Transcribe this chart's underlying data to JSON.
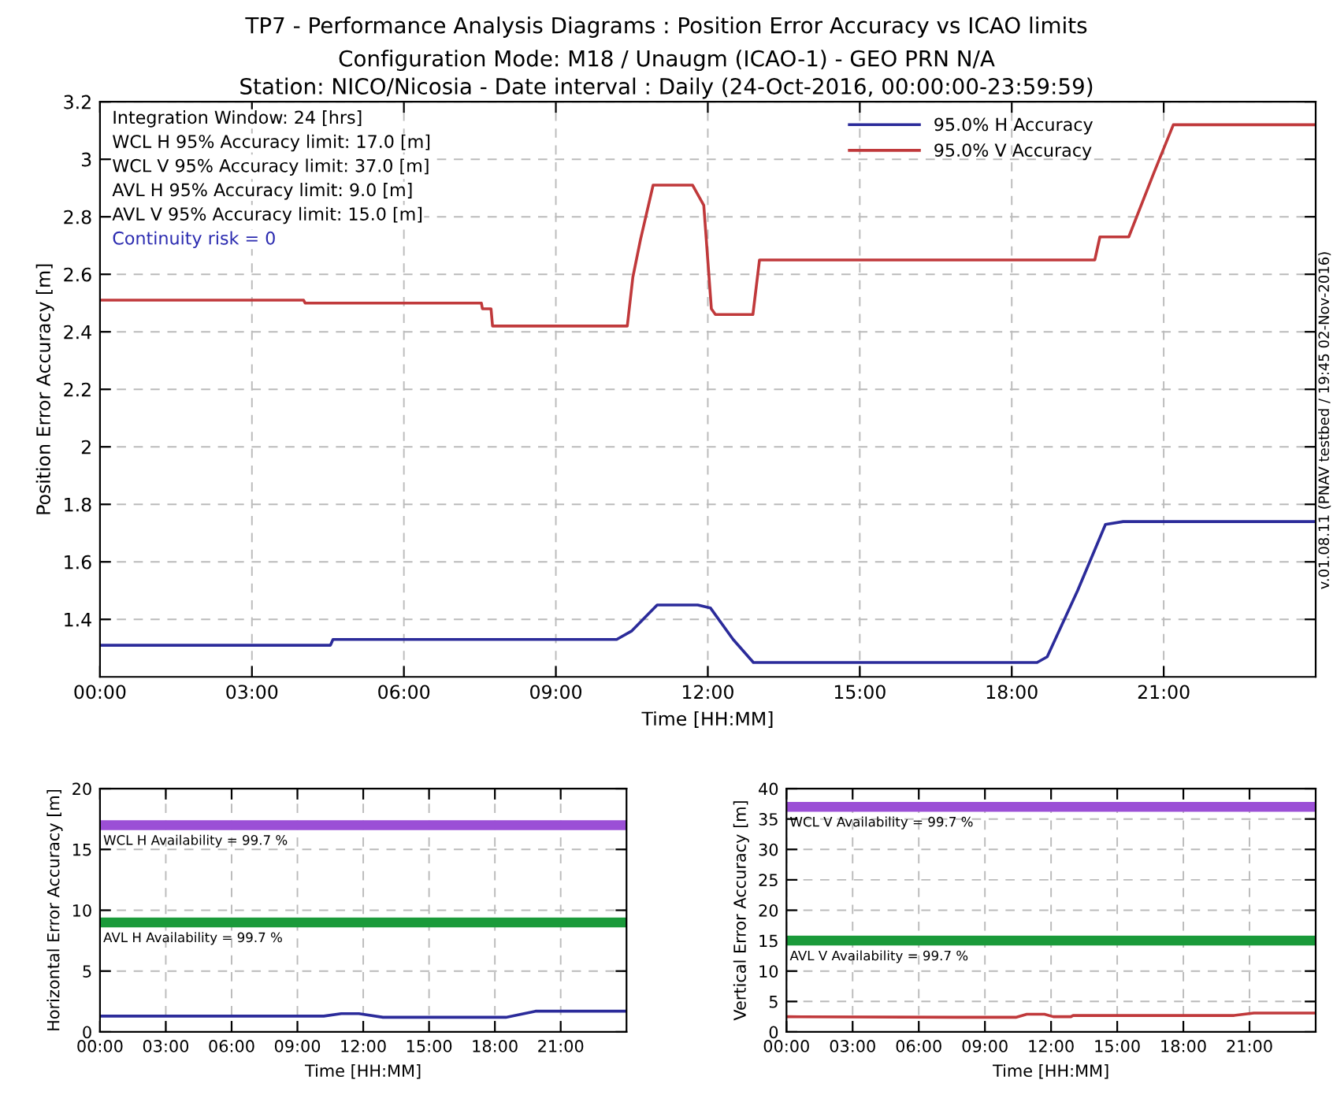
{
  "chart_data": [
    {
      "type": "line",
      "title": "TP7 - Performance Analysis Diagrams : Position Error Accuracy vs ICAO limits",
      "subtitle": "Configuration Mode: M18 / Unaugm (ICAO-1) - GEO PRN N/A\nStation: NICO/Nicosia - Date interval : Daily (24-Oct-2016, 00:00:00-23:59:59)",
      "xlabel": "Time [HH:MM]",
      "ylabel": "Position Error Accuracy [m]",
      "xlim": [
        0,
        24
      ],
      "xticks": [
        {
          "value": 0,
          "label": "00:00"
        },
        {
          "value": 3,
          "label": "03:00"
        },
        {
          "value": 6,
          "label": "06:00"
        },
        {
          "value": 9,
          "label": "09:00"
        },
        {
          "value": 12,
          "label": "12:00"
        },
        {
          "value": 15,
          "label": "15:00"
        },
        {
          "value": 18,
          "label": "18:00"
        },
        {
          "value": 21,
          "label": "21:00"
        }
      ],
      "ylim": [
        1.2,
        3.2
      ],
      "yticks": [
        1.4,
        1.6,
        1.8,
        2,
        2.2,
        2.4,
        2.6,
        2.8,
        3,
        3.2
      ],
      "grid": true,
      "legend": "top right",
      "line_style": "solid",
      "series": [
        {
          "name": "95.0% H Accuracy",
          "color": "#2b2b9a",
          "x": [
            0,
            4.55,
            4.6,
            10.2,
            10.5,
            11.0,
            11.8,
            12.05,
            12.5,
            12.9,
            18.5,
            18.7,
            19.3,
            19.85,
            20.2,
            24
          ],
          "values": [
            1.31,
            1.31,
            1.33,
            1.33,
            1.36,
            1.45,
            1.45,
            1.44,
            1.33,
            1.25,
            1.25,
            1.27,
            1.5,
            1.73,
            1.74,
            1.74
          ]
        },
        {
          "name": "95.0% V Accuracy",
          "color": "#c0393b",
          "x": [
            0,
            4.02,
            4.05,
            7.53,
            7.55,
            7.72,
            7.75,
            10.41,
            10.52,
            10.67,
            10.92,
            11.7,
            11.92,
            12.07,
            12.15,
            12.89,
            13.02,
            19.64,
            19.74,
            20.31,
            20.8,
            21.19,
            24
          ],
          "values": [
            2.51,
            2.51,
            2.5,
            2.5,
            2.48,
            2.48,
            2.42,
            2.42,
            2.59,
            2.72,
            2.91,
            2.91,
            2.84,
            2.48,
            2.46,
            2.46,
            2.65,
            2.65,
            2.73,
            2.73,
            2.95,
            3.12,
            3.12
          ]
        }
      ],
      "annotations": [
        "Integration Window: 24 [hrs]",
        "WCL H 95% Accuracy limit: 17.0 [m]",
        "WCL V 95% Accuracy limit: 37.0 [m]",
        "AVL H 95% Accuracy limit: 9.0 [m]",
        "AVL V 95% Accuracy limit: 15.0 [m]",
        "Continuity risk = 0",
        "v.01.08.11 (PNAV testbed / 19:45 02-Nov-2016)"
      ]
    },
    {
      "type": "line",
      "xlabel": "Time [HH:MM]",
      "ylabel": "Horizontal Error Accuracy [m]",
      "xlim": [
        0,
        24
      ],
      "xticks": [
        {
          "value": 0,
          "label": "00:00"
        },
        {
          "value": 3,
          "label": "03:00"
        },
        {
          "value": 6,
          "label": "06:00"
        },
        {
          "value": 9,
          "label": "09:00"
        },
        {
          "value": 12,
          "label": "12:00"
        },
        {
          "value": 15,
          "label": "15:00"
        },
        {
          "value": 18,
          "label": "18:00"
        },
        {
          "value": 21,
          "label": "21:00"
        }
      ],
      "ylim": [
        0,
        20
      ],
      "yticks": [
        0,
        5,
        10,
        15,
        20
      ],
      "grid": true,
      "line_style": "solid",
      "series": [
        {
          "color": "#2b2b9a",
          "x": [
            0,
            10.2,
            11.0,
            11.8,
            12.9,
            18.5,
            19.85,
            24
          ],
          "values": [
            1.3,
            1.3,
            1.5,
            1.5,
            1.2,
            1.2,
            1.7,
            1.7
          ]
        }
      ],
      "ref_lines": [
        {
          "axis": "y",
          "value": 17,
          "color": "#9b4fd6"
        },
        {
          "axis": "y",
          "value": 9,
          "color": "#1a9a3a"
        }
      ],
      "annotations": [
        "WCL H Availability = 99.7 %",
        "AVL H Availability = 99.7 %"
      ]
    },
    {
      "type": "line",
      "xlabel": "Time [HH:MM]",
      "ylabel": "Vertical Error Accuracy [m]",
      "xlim": [
        0,
        24
      ],
      "xticks": [
        {
          "value": 0,
          "label": "00:00"
        },
        {
          "value": 3,
          "label": "03:00"
        },
        {
          "value": 6,
          "label": "06:00"
        },
        {
          "value": 9,
          "label": "09:00"
        },
        {
          "value": 12,
          "label": "12:00"
        },
        {
          "value": 15,
          "label": "15:00"
        },
        {
          "value": 18,
          "label": "18:00"
        },
        {
          "value": 21,
          "label": "21:00"
        }
      ],
      "ylim": [
        0,
        40
      ],
      "yticks": [
        0,
        5,
        10,
        15,
        20,
        25,
        30,
        35,
        40
      ],
      "grid": true,
      "line_style": "solid",
      "series": [
        {
          "color": "#c0393b",
          "x": [
            0,
            7.7,
            10.4,
            10.9,
            11.7,
            12.1,
            12.9,
            13.0,
            20.3,
            21.2,
            24
          ],
          "values": [
            2.5,
            2.4,
            2.4,
            2.9,
            2.9,
            2.5,
            2.5,
            2.7,
            2.7,
            3.1,
            3.1
          ]
        }
      ],
      "ref_lines": [
        {
          "axis": "y",
          "value": 37,
          "color": "#9b4fd6"
        },
        {
          "axis": "y",
          "value": 15,
          "color": "#1a9a3a"
        }
      ],
      "annotations": [
        "WCL V Availability = 99.7 %",
        "AVL V Availability = 99.7 %"
      ]
    }
  ]
}
